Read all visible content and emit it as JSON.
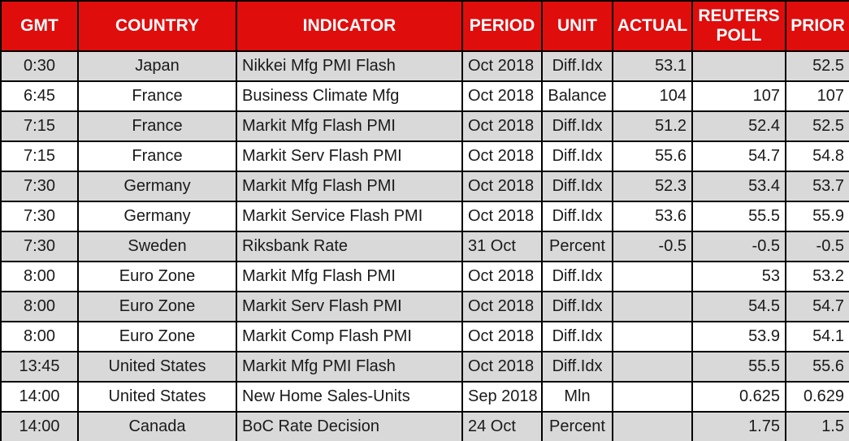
{
  "title": "Economic calendar table",
  "colors": {
    "header_bg": "#e00d0d",
    "header_fg": "#ffffff",
    "stripe_bg": "#d9d9d9",
    "row_bg": "#ffffff",
    "border": "#000000",
    "body_fg": "#1a1a1a"
  },
  "columns": [
    {
      "label": "GMT"
    },
    {
      "label": "COUNTRY"
    },
    {
      "label": "INDICATOR"
    },
    {
      "label": "PERIOD"
    },
    {
      "label": "UNIT"
    },
    {
      "label": "ACTUAL"
    },
    {
      "label": "REUTERS POLL"
    },
    {
      "label": "PRIOR"
    }
  ],
  "rows": [
    {
      "gmt": "0:30",
      "country": "Japan",
      "indicator": "Nikkei Mfg PMI Flash",
      "period": "Oct 2018",
      "unit": "Diff.Idx",
      "actual": "53.1",
      "reuters_poll": "",
      "prior": "52.5"
    },
    {
      "gmt": "6:45",
      "country": "France",
      "indicator": "Business Climate Mfg",
      "period": "Oct 2018",
      "unit": "Balance",
      "actual": "104",
      "reuters_poll": "107",
      "prior": "107"
    },
    {
      "gmt": "7:15",
      "country": "France",
      "indicator": "Markit Mfg Flash PMI",
      "period": "Oct 2018",
      "unit": "Diff.Idx",
      "actual": "51.2",
      "reuters_poll": "52.4",
      "prior": "52.5"
    },
    {
      "gmt": "7:15",
      "country": "France",
      "indicator": "Markit Serv Flash PMI",
      "period": "Oct 2018",
      "unit": "Diff.Idx",
      "actual": "55.6",
      "reuters_poll": "54.7",
      "prior": "54.8"
    },
    {
      "gmt": "7:30",
      "country": "Germany",
      "indicator": "Markit Mfg Flash PMI",
      "period": "Oct 2018",
      "unit": "Diff.Idx",
      "actual": "52.3",
      "reuters_poll": "53.4",
      "prior": "53.7"
    },
    {
      "gmt": "7:30",
      "country": "Germany",
      "indicator": "Markit Service Flash PMI",
      "period": "Oct 2018",
      "unit": "Diff.Idx",
      "actual": "53.6",
      "reuters_poll": "55.5",
      "prior": "55.9"
    },
    {
      "gmt": "7:30",
      "country": "Sweden",
      "indicator": "Riksbank Rate",
      "period": "31 Oct",
      "unit": "Percent",
      "actual": "-0.5",
      "reuters_poll": "-0.5",
      "prior": "-0.5"
    },
    {
      "gmt": "8:00",
      "country": "Euro Zone",
      "indicator": "Markit Mfg Flash PMI",
      "period": "Oct 2018",
      "unit": "Diff.Idx",
      "actual": "",
      "reuters_poll": "53",
      "prior": "53.2"
    },
    {
      "gmt": "8:00",
      "country": "Euro Zone",
      "indicator": "Markit Serv Flash PMI",
      "period": "Oct 2018",
      "unit": "Diff.Idx",
      "actual": "",
      "reuters_poll": "54.5",
      "prior": "54.7"
    },
    {
      "gmt": "8:00",
      "country": "Euro Zone",
      "indicator": "Markit Comp Flash PMI",
      "period": "Oct 2018",
      "unit": "Diff.Idx",
      "actual": "",
      "reuters_poll": "53.9",
      "prior": "54.1"
    },
    {
      "gmt": "13:45",
      "country": "United States",
      "indicator": "Markit Mfg PMI Flash",
      "period": "Oct 2018",
      "unit": "Diff.Idx",
      "actual": "",
      "reuters_poll": "55.5",
      "prior": "55.6"
    },
    {
      "gmt": "14:00",
      "country": "United States",
      "indicator": "New Home Sales-Units",
      "period": "Sep 2018",
      "unit": "Mln",
      "actual": "",
      "reuters_poll": "0.625",
      "prior": "0.629"
    },
    {
      "gmt": "14:00",
      "country": "Canada",
      "indicator": "BoC Rate Decision",
      "period": "24 Oct",
      "unit": "Percent",
      "actual": "",
      "reuters_poll": "1.75",
      "prior": "1.5"
    }
  ]
}
